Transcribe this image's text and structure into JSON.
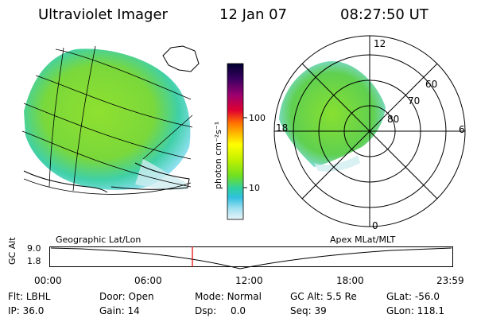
{
  "header": {
    "instrument": "Ultraviolet Imager",
    "date": "12 Jan 07",
    "time": "08:27:50 UT"
  },
  "colorbar": {
    "unit": "photon cm⁻²s⁻¹",
    "ticks": [
      "100",
      "10"
    ],
    "scale": "log",
    "colors": [
      "#000030",
      "#3a0060",
      "#9a0070",
      "#e00030",
      "#ff7000",
      "#ffb000",
      "#ffff00",
      "#c0f000",
      "#70e020",
      "#30d0a0",
      "#30c0e0",
      "#a0e0f0",
      "#e8f4f8"
    ]
  },
  "polar_plot": {
    "mlt_labels": [
      "12",
      "18",
      "6",
      "0"
    ],
    "lat_labels": [
      "60",
      "70",
      "80"
    ]
  },
  "timeline": {
    "axis_label": "GC Alt",
    "left_caption": "Geographic Lat/Lon",
    "right_caption": "Apex MLat/MLT",
    "y_ticks": [
      "9.0",
      "1.8"
    ],
    "x_ticks": [
      "00:00",
      "06:00",
      "12:00",
      "18:00",
      "23:59"
    ],
    "marker_time": "08:27:50",
    "marker_color": "#e00000"
  },
  "status": {
    "flt_label": "Flt:",
    "flt_value": "LBHL",
    "ip_label": "IP:",
    "ip_value": "36.0",
    "door_label": "Door:",
    "door_value": "Open",
    "gain_label": "Gain:",
    "gain_value": "14",
    "mode_label": "Mode:",
    "mode_value": "Normal",
    "dsp_label": "Dsp:",
    "dsp_value": "0.0",
    "gcalt_label": "GC Alt:",
    "gcalt_value": "5.5 Re",
    "seq_label": "Seq:",
    "seq_value": "39",
    "glat_label": "GLat:",
    "glat_value": "-56.0",
    "glon_label": "GLon:",
    "glon_value": "118.1"
  }
}
